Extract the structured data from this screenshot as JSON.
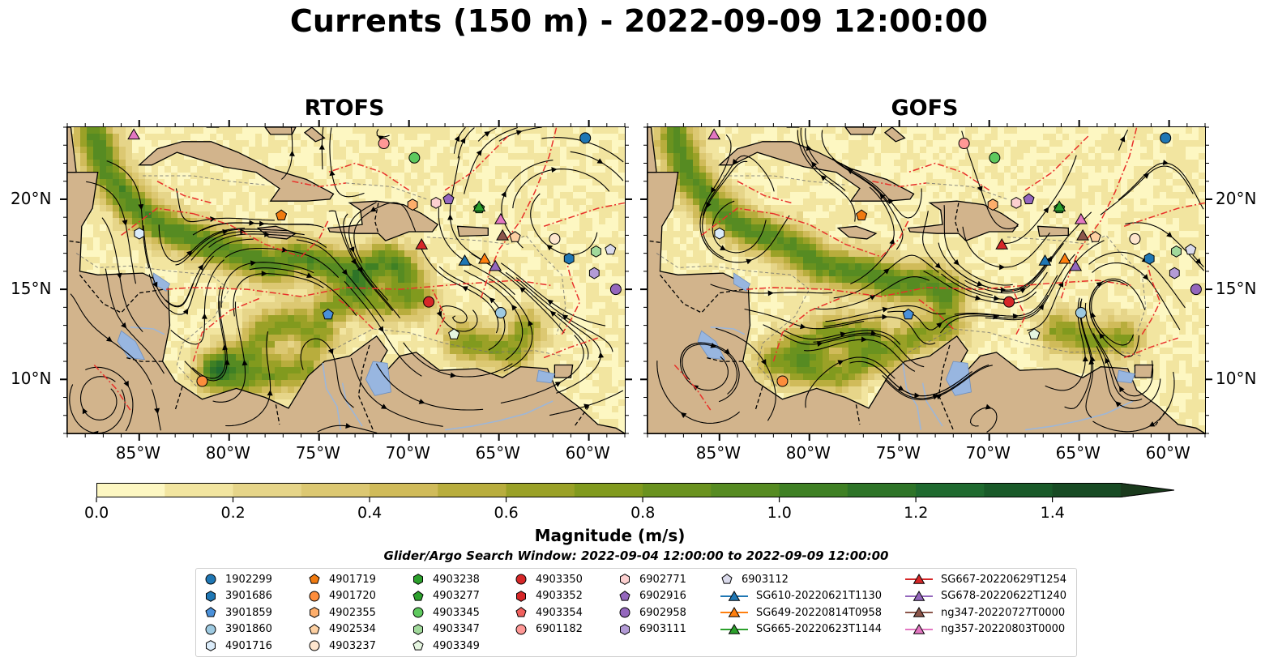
{
  "title": "Currents (150 m) - 2022-09-09 12:00:00",
  "panels": [
    {
      "title": "RTOFS"
    },
    {
      "title": "GOFS"
    }
  ],
  "axes": {
    "x_ticks": [
      "85°W",
      "80°W",
      "75°W",
      "70°W",
      "65°W",
      "60°W"
    ],
    "y_ticks": [
      "20°N",
      "15°N",
      "10°N"
    ],
    "lon_range": [
      -89,
      -58
    ],
    "lat_range": [
      7,
      24
    ]
  },
  "colorbar": {
    "title": "Magnitude (m/s)",
    "ticks": [
      "0.0",
      "0.2",
      "0.4",
      "0.6",
      "0.8",
      "1.0",
      "1.2",
      "1.4"
    ],
    "range": [
      0.0,
      1.5
    ],
    "colors": [
      "#fdf7c2",
      "#f2e5a0",
      "#e6d589",
      "#dcc872",
      "#d0bb5a",
      "#b8ad3d",
      "#9aa127",
      "#819a1e",
      "#6a921f",
      "#568b22",
      "#3f8024",
      "#2e7428",
      "#1f6a2f",
      "#195a29",
      "#184b24",
      "#1a3a1c"
    ]
  },
  "colors": {
    "land": "#d2b48c",
    "water": "#98b6e0",
    "eez_lines": "#e8302a",
    "border_lines": "#000000"
  },
  "search_window": "Glider/Argo Search Window: 2022-09-04 12:00:00 to 2022-09-09 12:00:00",
  "legend": [
    {
      "label": "1902299",
      "marker": "circle",
      "color": "#1f77b4"
    },
    {
      "label": "3901686",
      "marker": "hexagon",
      "color": "#1f77b4"
    },
    {
      "label": "3901859",
      "marker": "pentagon",
      "color": "#4a90d9"
    },
    {
      "label": "3901860",
      "marker": "circle",
      "color": "#9ecae1"
    },
    {
      "label": "4901716",
      "marker": "hexagon",
      "color": "#dbecfa"
    },
    {
      "label": "4901719",
      "marker": "pentagon",
      "color": "#f07a10"
    },
    {
      "label": "4901720",
      "marker": "circle",
      "color": "#fd8d3c"
    },
    {
      "label": "4902355",
      "marker": "hexagon",
      "color": "#fdae6b"
    },
    {
      "label": "4902534",
      "marker": "pentagon",
      "color": "#fdd0a2"
    },
    {
      "label": "4903237",
      "marker": "circle",
      "color": "#fee6ce"
    },
    {
      "label": "4903238",
      "marker": "hexagon",
      "color": "#2ca02c"
    },
    {
      "label": "4903277",
      "marker": "pentagon",
      "color": "#2ca02c"
    },
    {
      "label": "4903345",
      "marker": "circle",
      "color": "#5ec95e"
    },
    {
      "label": "4903347",
      "marker": "hexagon",
      "color": "#a1d99b"
    },
    {
      "label": "4903349",
      "marker": "pentagon",
      "color": "#e5f5e0"
    },
    {
      "label": "4903350",
      "marker": "circle",
      "color": "#d62728"
    },
    {
      "label": "4903352",
      "marker": "hexagon",
      "color": "#d62728"
    },
    {
      "label": "4903354",
      "marker": "pentagon",
      "color": "#f0605d"
    },
    {
      "label": "6901182",
      "marker": "circle",
      "color": "#ff9896"
    },
    {
      "label": "6902771",
      "marker": "hexagon",
      "color": "#fcd0d0"
    },
    {
      "label": "6902916",
      "marker": "pentagon",
      "color": "#9467bd"
    },
    {
      "label": "6902958",
      "marker": "circle",
      "color": "#9467bd"
    },
    {
      "label": "6903111",
      "marker": "hexagon",
      "color": "#b39bd6"
    },
    {
      "label": "6903112",
      "marker": "pentagon",
      "color": "#dadaeb"
    },
    {
      "label": "SG610-20220621T1130",
      "marker": "triangle",
      "color": "#1f77b4"
    },
    {
      "label": "SG649-20220814T0958",
      "marker": "triangle",
      "color": "#ff7f0e"
    },
    {
      "label": "SG665-20220623T1144",
      "marker": "triangle",
      "color": "#2ca02c"
    },
    {
      "label": "SG667-20220629T1254",
      "marker": "triangle",
      "color": "#d62728"
    },
    {
      "label": "SG678-20220622T1240",
      "marker": "triangle",
      "color": "#9467bd"
    },
    {
      "label": "ng347-20220727T0000",
      "marker": "triangle",
      "color": "#8c564b"
    },
    {
      "label": "ng357-20220803T0000",
      "marker": "triangle",
      "color": "#e377c2"
    }
  ],
  "platforms": {
    "rtofs": [
      {
        "id": "1902299",
        "lon": -60.2,
        "lat": 23.4
      },
      {
        "id": "3901686",
        "lon": -61.1,
        "lat": 16.7
      },
      {
        "id": "3901859",
        "lon": -74.5,
        "lat": 13.6
      },
      {
        "id": "3901860",
        "lon": -64.9,
        "lat": 13.7
      },
      {
        "id": "4901716",
        "lon": -85.0,
        "lat": 18.1
      },
      {
        "id": "4901719",
        "lon": -77.1,
        "lat": 19.1
      },
      {
        "id": "4901720",
        "lon": -81.5,
        "lat": 9.9
      },
      {
        "id": "4902355",
        "lon": -69.8,
        "lat": 19.7
      },
      {
        "id": "4902534",
        "lon": -64.1,
        "lat": 17.9
      },
      {
        "id": "4903237",
        "lon": -61.9,
        "lat": 17.8
      },
      {
        "id": "4903277",
        "lon": -66.1,
        "lat": 19.5
      },
      {
        "id": "4903345",
        "lon": -69.7,
        "lat": 22.3
      },
      {
        "id": "4903347",
        "lon": -59.6,
        "lat": 17.1
      },
      {
        "id": "4903349",
        "lon": -67.5,
        "lat": 12.5
      },
      {
        "id": "4903350",
        "lon": -68.9,
        "lat": 14.3
      },
      {
        "id": "6901182",
        "lon": -71.4,
        "lat": 23.1
      },
      {
        "id": "6902771",
        "lon": -68.5,
        "lat": 19.8
      },
      {
        "id": "6902916",
        "lon": -67.8,
        "lat": 20.0
      },
      {
        "id": "6902958",
        "lon": -58.5,
        "lat": 15.0
      },
      {
        "id": "6903111",
        "lon": -59.7,
        "lat": 15.9
      },
      {
        "id": "6903112",
        "lon": -58.8,
        "lat": 17.2
      },
      {
        "id": "SG610-20220621T1130",
        "lon": -66.9,
        "lat": 16.6
      },
      {
        "id": "SG649-20220814T0958",
        "lon": -65.8,
        "lat": 16.7
      },
      {
        "id": "SG665-20220623T1144",
        "lon": -66.1,
        "lat": 19.6
      },
      {
        "id": "SG667-20220629T1254",
        "lon": -69.3,
        "lat": 17.5
      },
      {
        "id": "SG678-20220622T1240",
        "lon": -65.2,
        "lat": 16.3
      },
      {
        "id": "ng347-20220727T0000",
        "lon": -64.8,
        "lat": 18.0
      },
      {
        "id": "ng357-20220803T0000",
        "lon": -64.9,
        "lat": 18.9
      },
      {
        "id": "ng357-20220803T0000",
        "lon": -85.3,
        "lat": 23.6
      }
    ],
    "gofs": [
      {
        "id": "1902299",
        "lon": -60.2,
        "lat": 23.4
      },
      {
        "id": "3901686",
        "lon": -61.1,
        "lat": 16.7
      },
      {
        "id": "3901859",
        "lon": -74.5,
        "lat": 13.6
      },
      {
        "id": "3901860",
        "lon": -64.9,
        "lat": 13.7
      },
      {
        "id": "4901716",
        "lon": -85.0,
        "lat": 18.1
      },
      {
        "id": "4901719",
        "lon": -77.1,
        "lat": 19.1
      },
      {
        "id": "4901720",
        "lon": -81.5,
        "lat": 9.9
      },
      {
        "id": "4902355",
        "lon": -69.8,
        "lat": 19.7
      },
      {
        "id": "4902534",
        "lon": -64.1,
        "lat": 17.9
      },
      {
        "id": "4903237",
        "lon": -61.9,
        "lat": 17.8
      },
      {
        "id": "4903277",
        "lon": -66.1,
        "lat": 19.5
      },
      {
        "id": "4903345",
        "lon": -69.7,
        "lat": 22.3
      },
      {
        "id": "4903347",
        "lon": -59.6,
        "lat": 17.1
      },
      {
        "id": "4903349",
        "lon": -67.5,
        "lat": 12.5
      },
      {
        "id": "4903350",
        "lon": -68.9,
        "lat": 14.3
      },
      {
        "id": "6901182",
        "lon": -71.4,
        "lat": 23.1
      },
      {
        "id": "6902771",
        "lon": -68.5,
        "lat": 19.8
      },
      {
        "id": "6902916",
        "lon": -67.8,
        "lat": 20.0
      },
      {
        "id": "6902958",
        "lon": -58.5,
        "lat": 15.0
      },
      {
        "id": "6903111",
        "lon": -59.7,
        "lat": 15.9
      },
      {
        "id": "6903112",
        "lon": -58.8,
        "lat": 17.2
      },
      {
        "id": "SG610-20220621T1130",
        "lon": -66.9,
        "lat": 16.6
      },
      {
        "id": "SG649-20220814T0958",
        "lon": -65.8,
        "lat": 16.7
      },
      {
        "id": "SG665-20220623T1144",
        "lon": -66.1,
        "lat": 19.6
      },
      {
        "id": "SG667-20220629T1254",
        "lon": -69.3,
        "lat": 17.5
      },
      {
        "id": "SG678-20220622T1240",
        "lon": -65.2,
        "lat": 16.3
      },
      {
        "id": "ng347-20220727T0000",
        "lon": -64.8,
        "lat": 18.0
      },
      {
        "id": "ng357-20220803T0000",
        "lon": -64.9,
        "lat": 18.9
      },
      {
        "id": "ng357-20220803T0000",
        "lon": -85.3,
        "lat": 23.6
      }
    ]
  }
}
